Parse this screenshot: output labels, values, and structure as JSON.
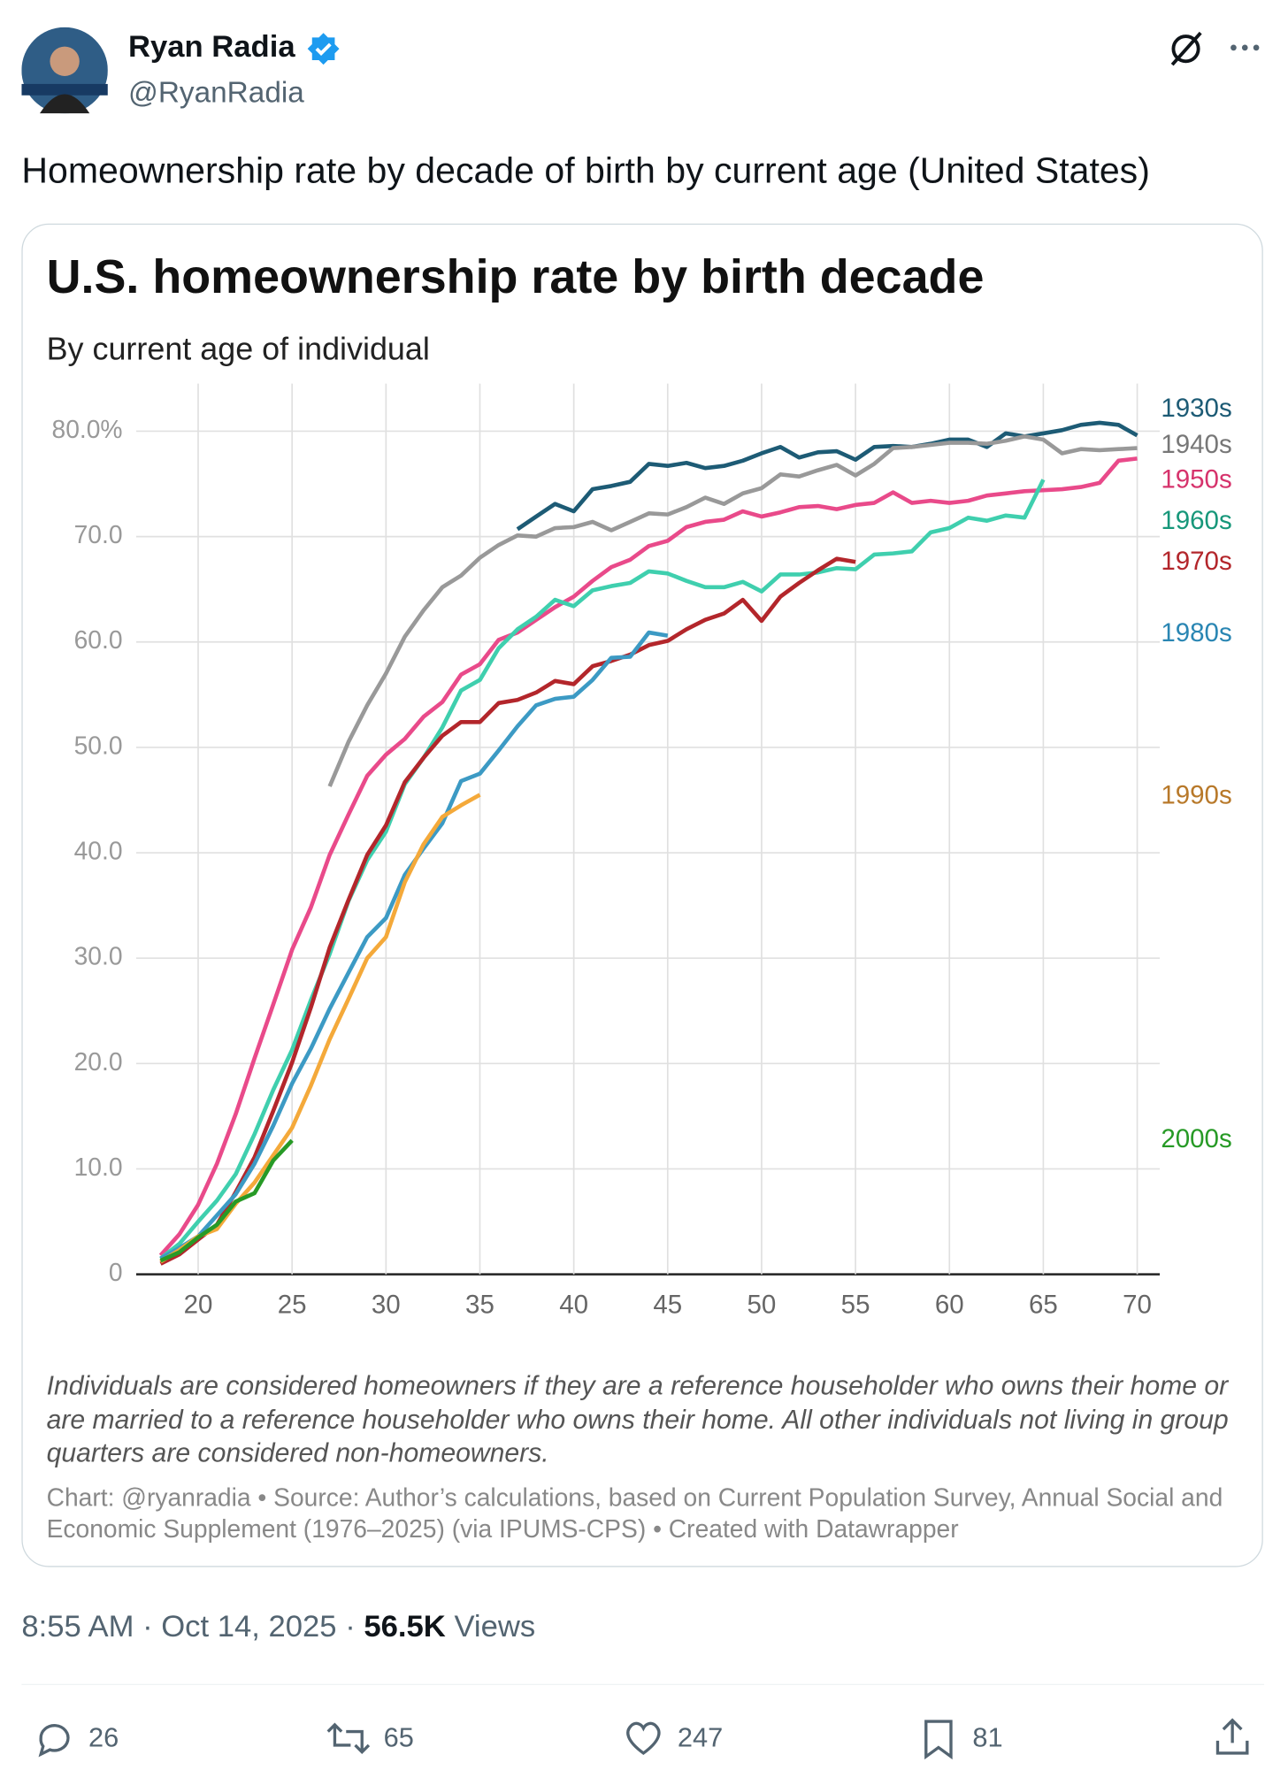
{
  "tweet": {
    "author": {
      "name": "Ryan Radia",
      "handle": "@RyanRadia"
    },
    "text": "Homeownership rate by decade of birth by current age (United States)",
    "time": "8:55 AM",
    "date": "Oct 14, 2025",
    "views": "56.5K",
    "views_label": "Views",
    "replies": "26",
    "reposts": "65",
    "likes": "247",
    "bookmarks": "81"
  },
  "chart_data": {
    "type": "line",
    "title": "U.S. homeownership rate by birth decade",
    "subtitle": "By current age of individual",
    "note": "Individuals are considered homeowners if they are a reference householder who owns their home or are married to a reference householder who owns their home. All other individuals not living in group quarters are considered non-homeowners.",
    "source": "Chart: @ryanradia • Source: Author’s calculations, based on Current Population Survey, Annual Social and Economic Supplement (1976–2025) (via IPUMS-CPS) • Created with Datawrapper",
    "x": [
      18,
      19,
      20,
      21,
      22,
      23,
      24,
      25,
      26,
      27,
      28,
      29,
      30,
      31,
      32,
      33,
      34,
      35,
      36,
      37,
      38,
      39,
      40,
      41,
      42,
      43,
      44,
      45,
      46,
      47,
      48,
      49,
      50,
      51,
      52,
      53,
      54,
      55,
      56,
      57,
      58,
      59,
      60,
      61,
      62,
      63,
      64,
      65,
      66,
      67,
      68,
      69,
      70
    ],
    "xlim": [
      16.7,
      71.2
    ],
    "xticks": [
      20,
      25,
      30,
      35,
      40,
      45,
      50,
      55,
      60,
      65,
      70
    ],
    "ylim": [
      0,
      80
    ],
    "yticks": [
      0,
      {
        "value": 10,
        "label": "10.0"
      },
      {
        "value": 20,
        "label": "20.0"
      },
      {
        "value": 30,
        "label": "30.0"
      },
      {
        "value": 40,
        "label": "40.0"
      },
      {
        "value": 50,
        "label": "50.0"
      },
      {
        "value": 60,
        "label": "60.0"
      },
      {
        "value": 70,
        "label": "70.0"
      },
      {
        "value": 80,
        "label": "80.0%"
      }
    ],
    "grid": true,
    "series": [
      {
        "name": "1930s",
        "color": "#1d5b75",
        "values": [
          null,
          null,
          null,
          null,
          null,
          null,
          null,
          null,
          null,
          null,
          null,
          null,
          null,
          null,
          null,
          null,
          null,
          null,
          null,
          70.7,
          71.9,
          73.1,
          72.4,
          74.5,
          74.8,
          75.2,
          76.9,
          76.7,
          77.0,
          76.5,
          76.7,
          77.2,
          77.9,
          78.5,
          77.5,
          78.0,
          78.1,
          77.3,
          78.5,
          78.6,
          78.5,
          78.8,
          79.2,
          79.2,
          78.5,
          79.8,
          79.5,
          79.8,
          80.1,
          80.6,
          80.8,
          80.6,
          79.6
        ]
      },
      {
        "name": "1940s",
        "color": "#999999",
        "values": [
          null,
          null,
          null,
          null,
          null,
          null,
          null,
          null,
          null,
          46.3,
          50.5,
          54.0,
          57.0,
          60.5,
          63.0,
          65.2,
          66.3,
          68.0,
          69.2,
          70.1,
          70.0,
          70.8,
          70.9,
          71.4,
          70.6,
          71.4,
          72.2,
          72.1,
          72.8,
          73.7,
          73.1,
          74.1,
          74.6,
          75.9,
          75.7,
          76.3,
          76.8,
          75.8,
          76.9,
          78.4,
          78.5,
          78.7,
          78.9,
          78.9,
          78.8,
          79.1,
          79.5,
          79.2,
          77.9,
          78.3,
          78.2,
          78.3,
          78.4
        ]
      },
      {
        "name": "1950s",
        "color": "#e94a8a",
        "values": [
          1.8,
          3.8,
          6.6,
          10.5,
          15.2,
          20.5,
          25.6,
          30.8,
          34.8,
          39.8,
          43.6,
          47.3,
          49.3,
          50.8,
          52.9,
          54.3,
          56.9,
          57.9,
          60.2,
          60.9,
          62.1,
          63.3,
          64.3,
          65.8,
          67.1,
          67.8,
          69.1,
          69.6,
          70.9,
          71.4,
          71.6,
          72.4,
          71.9,
          72.3,
          72.8,
          72.9,
          72.6,
          73.0,
          73.2,
          74.2,
          73.2,
          73.4,
          73.2,
          73.4,
          73.9,
          74.1,
          74.3,
          74.4,
          74.5,
          74.7,
          75.1,
          77.2,
          77.4
        ]
      },
      {
        "name": "1960s",
        "color": "#3fcfae",
        "values": [
          1.5,
          2.9,
          5.0,
          7.0,
          9.5,
          13.3,
          17.5,
          21.3,
          26.0,
          30.4,
          35.4,
          39.3,
          42.0,
          46.5,
          49.0,
          51.9,
          55.4,
          56.4,
          59.4,
          61.2,
          62.4,
          64.0,
          63.4,
          64.9,
          65.3,
          65.6,
          66.7,
          66.5,
          65.8,
          65.2,
          65.2,
          65.7,
          64.8,
          66.4,
          66.4,
          66.6,
          67.0,
          66.9,
          68.3,
          68.4,
          68.6,
          70.4,
          70.8,
          71.8,
          71.5,
          72.0,
          71.8,
          75.4,
          null,
          null,
          null,
          null,
          null
        ]
      },
      {
        "name": "1970s",
        "color": "#b3262b",
        "values": [
          1.0,
          1.9,
          3.3,
          4.7,
          7.8,
          11.1,
          15.5,
          20.1,
          25.3,
          31.0,
          35.5,
          39.8,
          42.6,
          46.7,
          49.0,
          51.1,
          52.4,
          52.4,
          54.2,
          54.5,
          55.2,
          56.3,
          56.0,
          57.7,
          58.2,
          58.8,
          59.7,
          60.1,
          61.2,
          62.1,
          62.7,
          64.0,
          62.0,
          64.3,
          65.6,
          66.8,
          67.9,
          67.6,
          null,
          null,
          null,
          null,
          null,
          null,
          null,
          null,
          null,
          null,
          null,
          null,
          null,
          null,
          null
        ]
      },
      {
        "name": "1980s",
        "color": "#3c9ac4",
        "values": [
          1.5,
          2.5,
          3.6,
          5.6,
          7.6,
          10.5,
          14.1,
          18.1,
          21.4,
          25.2,
          28.6,
          32.0,
          33.8,
          37.9,
          40.4,
          42.8,
          46.8,
          47.5,
          49.7,
          52.0,
          54.0,
          54.6,
          54.8,
          56.4,
          58.5,
          58.6,
          60.9,
          60.6,
          null,
          null,
          null,
          null,
          null,
          null,
          null,
          null,
          null,
          null,
          null,
          null,
          null,
          null,
          null,
          null,
          null,
          null,
          null,
          null,
          null,
          null,
          null,
          null,
          null
        ]
      },
      {
        "name": "1990s",
        "color": "#f4a93a",
        "values": [
          1.2,
          2.3,
          3.6,
          4.3,
          6.7,
          8.7,
          11.3,
          13.9,
          17.9,
          22.3,
          26.1,
          30.0,
          32.0,
          37.2,
          40.8,
          43.4,
          44.5,
          45.5,
          null,
          null,
          null,
          null,
          null,
          null,
          null,
          null,
          null,
          null,
          null,
          null,
          null,
          null,
          null,
          null,
          null,
          null,
          null,
          null,
          null,
          null,
          null,
          null,
          null,
          null,
          null,
          null,
          null,
          null,
          null,
          null,
          null,
          null,
          null
        ]
      },
      {
        "name": "2000s",
        "color": "#279a26",
        "values": [
          1.3,
          2.1,
          3.5,
          4.7,
          6.9,
          7.7,
          10.8,
          12.7,
          null,
          null,
          null,
          null,
          null,
          null,
          null,
          null,
          null,
          null,
          null,
          null,
          null,
          null,
          null,
          null,
          null,
          null,
          null,
          null,
          null,
          null,
          null,
          null,
          null,
          null,
          null,
          null,
          null,
          null,
          null,
          null,
          null,
          null,
          null,
          null,
          null,
          null,
          null,
          null,
          null,
          null,
          null,
          null,
          null
        ]
      }
    ]
  }
}
